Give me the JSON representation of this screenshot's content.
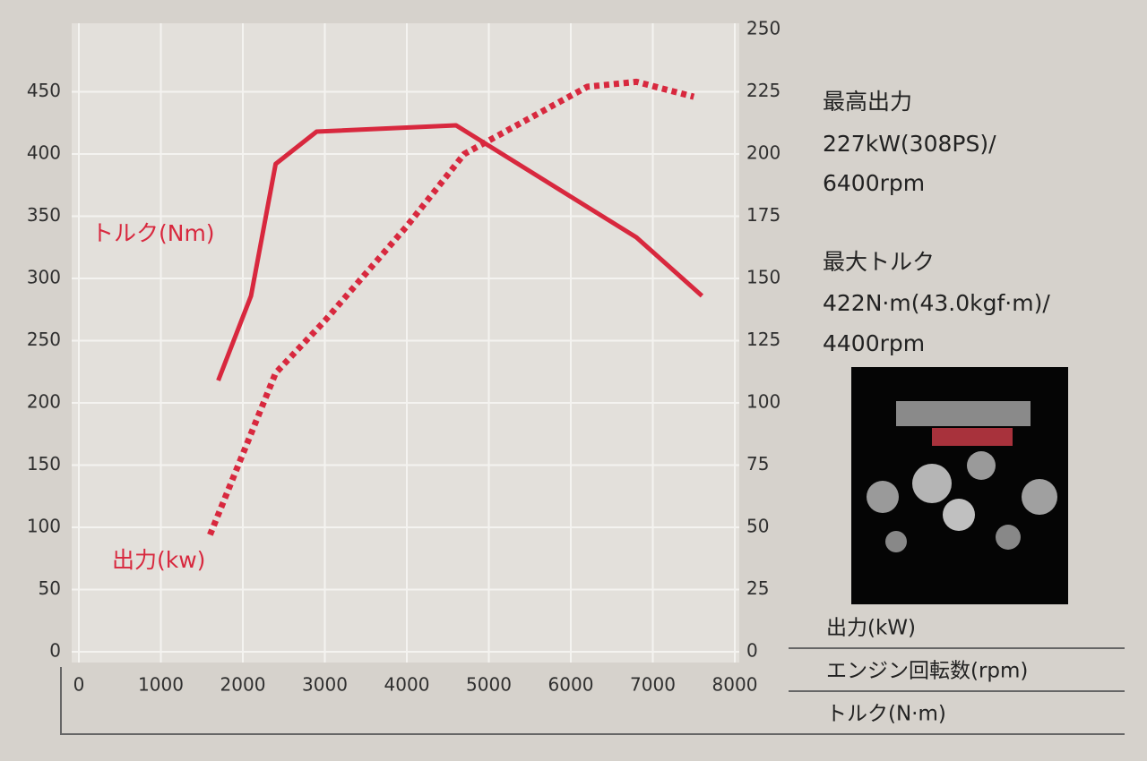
{
  "chart_data": {
    "type": "line",
    "x_label": "エンジン回転数(rpm)",
    "y_label": "トルク(N·m)",
    "y2_label": "出力(kW)",
    "series": [
      {
        "name": "トルク(Nm)",
        "color": "#d8283e",
        "style": "solid",
        "x": [
          1700,
          2100,
          2400,
          2900,
          4600,
          6800,
          7600
        ],
        "values": [
          218,
          286,
          392,
          418,
          423,
          333,
          286
        ]
      },
      {
        "name": "出力(kw)",
        "color": "#d8283e",
        "style": "dotted",
        "axis": "y2",
        "x": [
          1600,
          2400,
          3000,
          4000,
          4700,
          6200,
          6800,
          7500
        ],
        "values": [
          47,
          112,
          133,
          171,
          200,
          227,
          229,
          223
        ]
      }
    ],
    "xlim": [
      0,
      8000
    ],
    "xticks": [
      0,
      1000,
      2000,
      3000,
      4000,
      5000,
      6000,
      7000,
      8000
    ],
    "ylim": [
      0,
      500
    ],
    "yticks": [
      0,
      50,
      100,
      150,
      200,
      250,
      300,
      350,
      400,
      450
    ],
    "y2lim": [
      0,
      250
    ],
    "y2ticks": [
      0,
      25,
      50,
      75,
      100,
      125,
      150,
      175,
      200,
      225,
      250
    ],
    "grid": true
  },
  "specs": [
    {
      "title": "最高出力",
      "lines": [
        "227kW(308PS)/",
        "6400rpm"
      ]
    },
    {
      "title": "最大トルク",
      "lines": [
        "422N·m(43.0kgf·m)/",
        "4400rpm"
      ]
    }
  ]
}
